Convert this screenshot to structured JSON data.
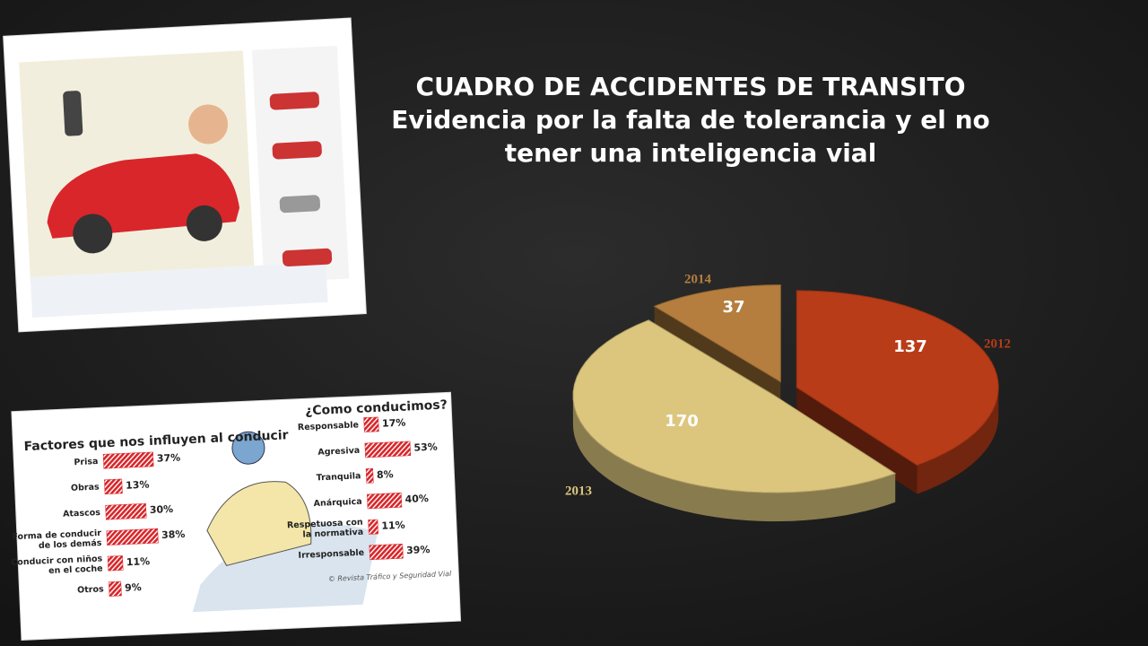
{
  "chart_data": [
    {
      "type": "pie",
      "title": "CUADRO DE ACCIDENTES DE TRANSITO",
      "subtitle": [
        "Evidencia por la falta de tolerancia y el no",
        "tener una inteligencia vial"
      ],
      "categories": [
        "2012",
        "2013",
        "2014"
      ],
      "values": [
        137,
        170,
        37
      ],
      "colors": [
        "#b83c18",
        "#dcc67e",
        "#b57e3e"
      ]
    },
    {
      "type": "hbar",
      "title": "Factores que nos influyen al conducir",
      "categories": [
        "Prisa",
        "Obras",
        "Atascos",
        "Forma de conducir de los demás",
        "Conducir con niños en el coche",
        "Otros"
      ],
      "values": [
        37,
        13,
        30,
        38,
        11,
        9
      ],
      "value_labels": [
        "37%",
        "13%",
        "30%",
        "38%",
        "11%",
        "9%"
      ],
      "color": "#d8262a"
    },
    {
      "type": "hbar",
      "title": "¿Como conducimos?",
      "categories": [
        "Responsable",
        "Agresiva",
        "Tranquila",
        "Anárquica",
        "Respetuosa con la normativa",
        "Irresponsable"
      ],
      "values": [
        17,
        53,
        8,
        40,
        11,
        39
      ],
      "value_labels": [
        "17%",
        "53%",
        "8%",
        "40%",
        "11%",
        "39%"
      ],
      "color": "#d8262a",
      "source": "© Revista Tráfico y Seguridad Vial"
    }
  ]
}
